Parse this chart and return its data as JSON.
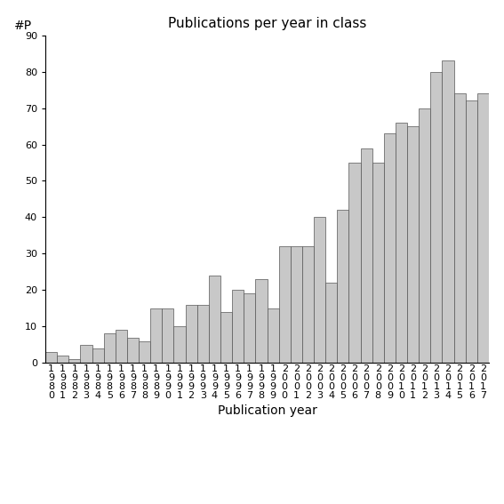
{
  "years": [
    1980,
    1981,
    1982,
    1983,
    1984,
    1985,
    1986,
    1987,
    1988,
    1989,
    1990,
    1991,
    1992,
    1993,
    1994,
    1995,
    1996,
    1997,
    1998,
    1999,
    2000,
    2001,
    2002,
    2003,
    2004,
    2005,
    2006,
    2007,
    2008,
    2009,
    2010,
    2011,
    2012,
    2013,
    2014,
    2015,
    2016,
    2017
  ],
  "values": [
    3,
    2,
    1,
    5,
    4,
    8,
    9,
    7,
    6,
    15,
    15,
    10,
    16,
    16,
    24,
    14,
    20,
    19,
    23,
    15,
    32,
    32,
    32,
    40,
    22,
    42,
    55,
    59,
    55,
    63,
    66,
    65,
    70,
    80,
    83,
    74,
    72,
    74
  ],
  "bar_color": "#c8c8c8",
  "bar_edgecolor": "#555555",
  "title": "Publications per year in class",
  "xlabel": "Publication year",
  "ylabel": "#P",
  "ylim": [
    0,
    90
  ],
  "yticks": [
    0,
    10,
    20,
    30,
    40,
    50,
    60,
    70,
    80,
    90
  ],
  "background_color": "#ffffff",
  "title_fontsize": 11,
  "label_fontsize": 10,
  "tick_fontsize": 8
}
